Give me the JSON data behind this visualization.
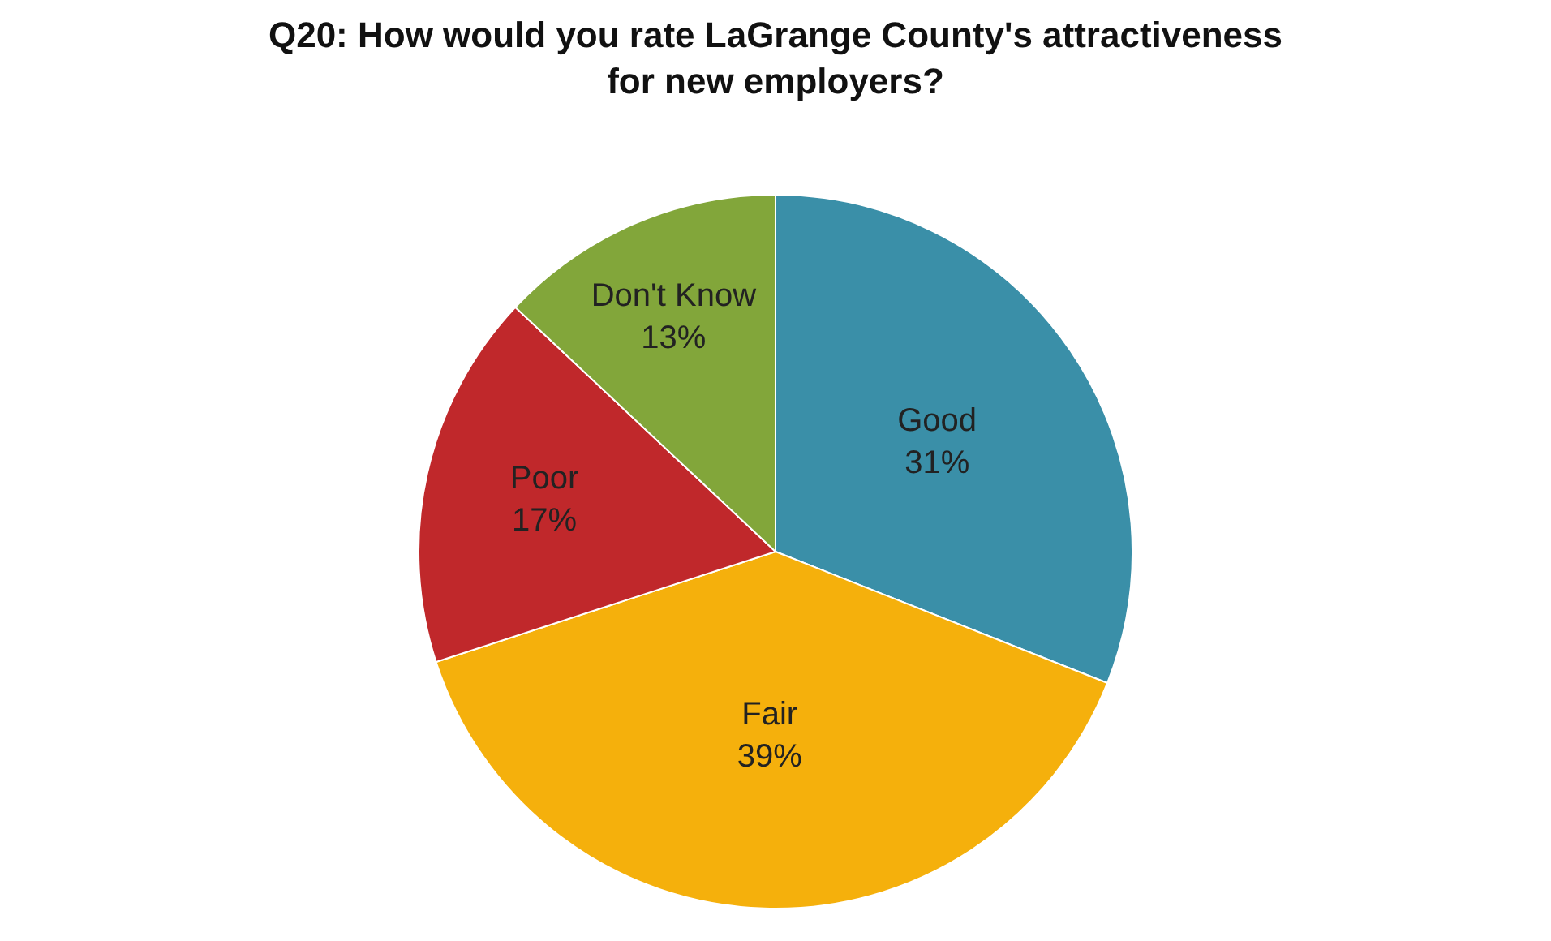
{
  "chart_data": {
    "type": "pie",
    "title": "Q20: How would you rate LaGrange County's attractiveness\nfor new employers?",
    "categories": [
      "Good",
      "Fair",
      "Poor",
      "Don't Know"
    ],
    "values": [
      31,
      39,
      17,
      13
    ],
    "value_labels": [
      "31%",
      "39%",
      "17%",
      "13%"
    ],
    "colors": [
      "#3a8fa8",
      "#f5b00c",
      "#c0282b",
      "#82a63a"
    ],
    "legend": false
  }
}
